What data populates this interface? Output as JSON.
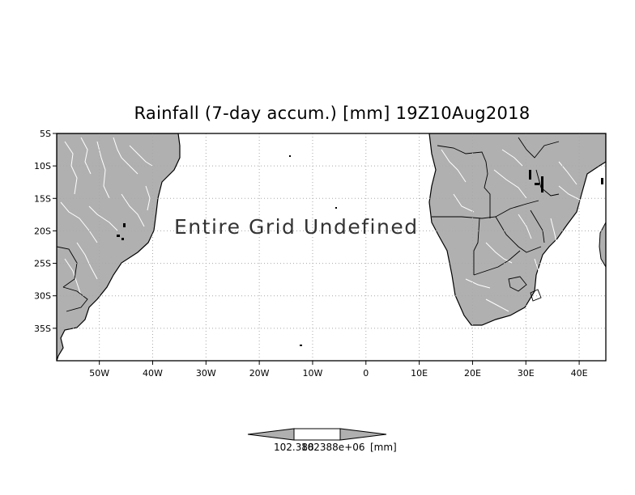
{
  "title": "Rainfall (7-day accum.) [mm] 19Z10Aug2018",
  "overlay_message": "Entire Grid Undefined",
  "axes": {
    "lat_ticks": [
      "5S",
      "10S",
      "15S",
      "20S",
      "25S",
      "30S",
      "35S"
    ],
    "lon_ticks": [
      "50W",
      "40W",
      "30W",
      "20W",
      "10W",
      "0",
      "10E",
      "20E",
      "30E",
      "40E"
    ],
    "lat_values": [
      -5,
      -10,
      -15,
      -20,
      -25,
      -30,
      -35
    ],
    "lon_values": [
      -50,
      -40,
      -30,
      -20,
      -10,
      0,
      10,
      20,
      30,
      40
    ],
    "lon_range": [
      -58,
      45
    ],
    "lat_range": [
      -40,
      -5
    ],
    "grid": true,
    "grid_style": "dotted"
  },
  "colorbar": {
    "label_left": "102.388",
    "label_right": "102388e+06",
    "unit": "[mm]"
  },
  "colors": {
    "land": "#b0b0b0",
    "rivers": "#ffffff",
    "coast": "#000000",
    "grid": "#a8a8a8"
  }
}
